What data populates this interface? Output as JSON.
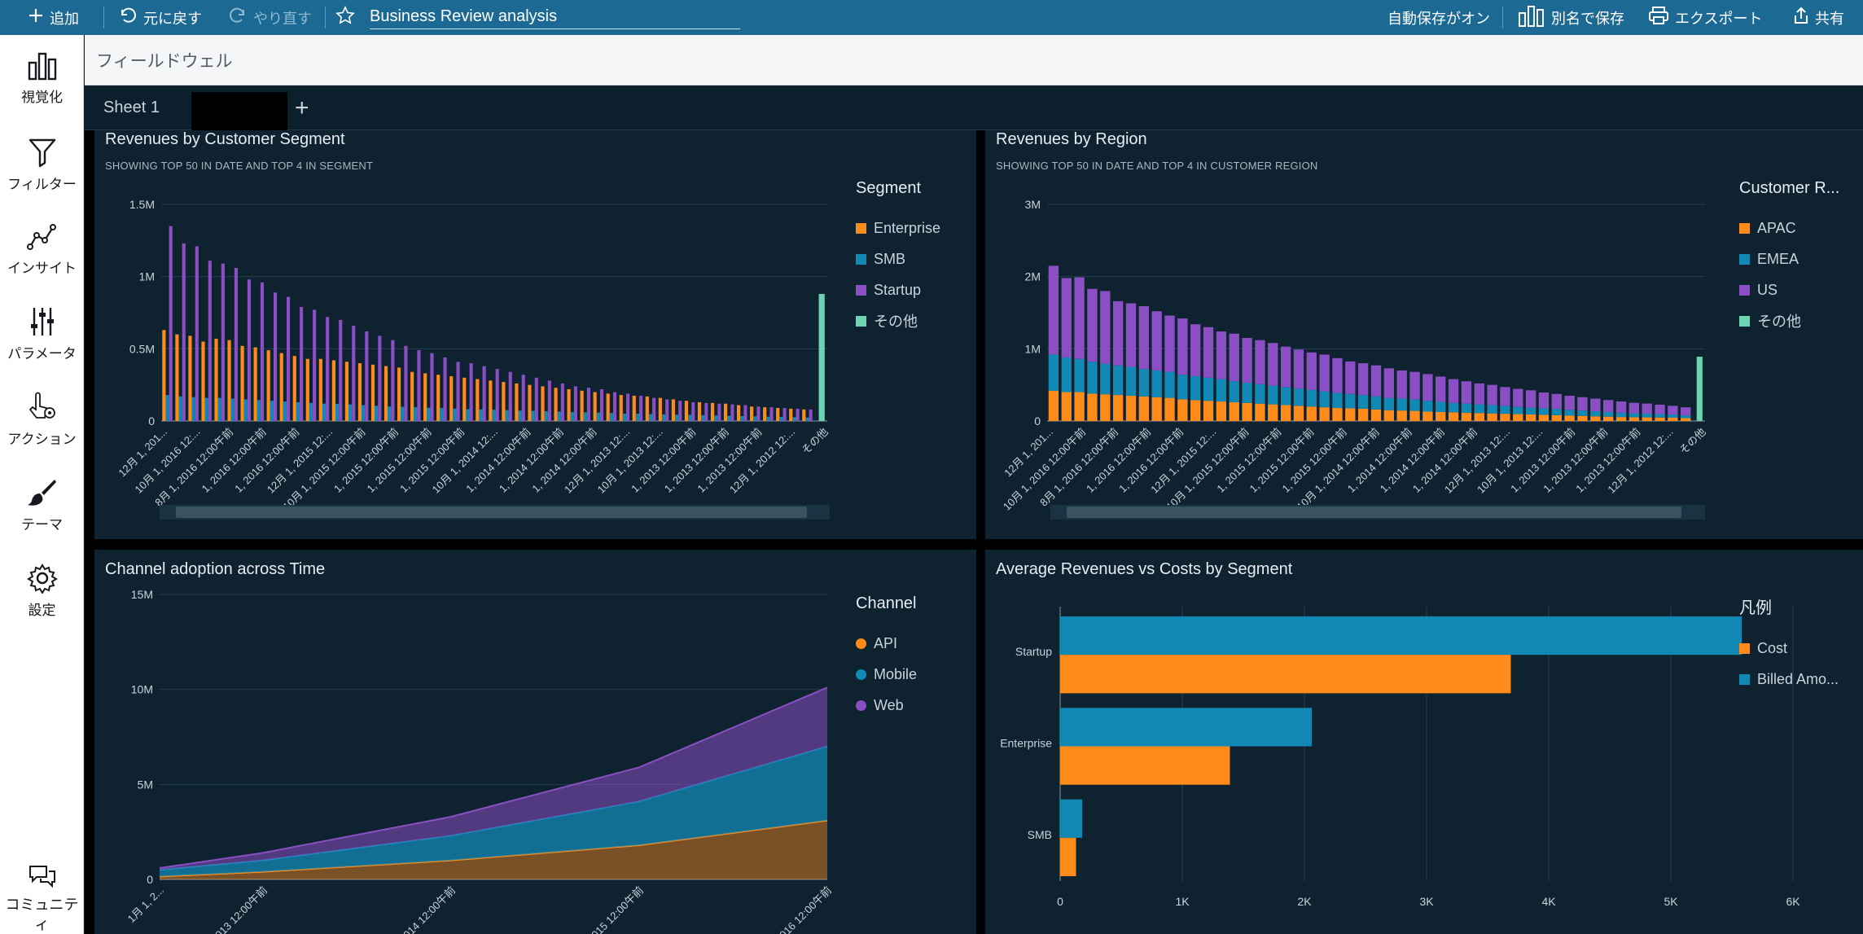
{
  "topbar": {
    "add_label": "追加",
    "undo_label": "元に戻す",
    "redo_label": "やり直す",
    "analysis_title": "Business Review analysis",
    "autosave_label": "自動保存がオン",
    "save_as_label": "別名で保存",
    "export_label": "エクスポート",
    "share_label": "共有"
  },
  "sidebar": {
    "items": [
      {
        "label": "視覚化",
        "icon": "bar-chart-icon"
      },
      {
        "label": "フィルター",
        "icon": "filter-icon"
      },
      {
        "label": "インサイト",
        "icon": "insight-icon"
      },
      {
        "label": "パラメータ",
        "icon": "sliders-icon"
      },
      {
        "label": "アクション",
        "icon": "pointer-gear-icon"
      },
      {
        "label": "テーマ",
        "icon": "brush-icon"
      },
      {
        "label": "設定",
        "icon": "gear-icon"
      }
    ],
    "community_label": "コミュニティ"
  },
  "fieldwell": {
    "label": "フィールドウェル"
  },
  "sheets": {
    "tabs": [
      "Sheet 1"
    ],
    "add_label": "+"
  },
  "colors": {
    "orange": "#ff8c1a",
    "teal": "#1189b4",
    "purple": "#8a4fc2",
    "mint": "#6fd2b2"
  },
  "visuals": {
    "segment": {
      "title": "Revenues by Customer Segment",
      "subtitle": "SHOWING TOP 50 IN DATE AND TOP 4 IN SEGMENT",
      "legend_title": "Segment",
      "legend": [
        "Enterprise",
        "SMB",
        "Startup",
        "その他"
      ]
    },
    "region": {
      "title": "Revenues by Region",
      "subtitle": "SHOWING TOP 50 IN DATE AND TOP 4 IN CUSTOMER REGION",
      "legend_title": "Customer R...",
      "legend": [
        "APAC",
        "EMEA",
        "US",
        "その他"
      ]
    },
    "channel": {
      "title": "Channel adoption across Time",
      "legend_title": "Channel",
      "legend": [
        "API",
        "Mobile",
        "Web"
      ]
    },
    "avg": {
      "title": "Average Revenues vs Costs by Segment",
      "legend_title": "凡例",
      "legend": [
        "Cost",
        "Billed Amo..."
      ]
    }
  },
  "chart_data": [
    {
      "id": "segment",
      "type": "bar",
      "y_ticks": [
        "0",
        "0.5M",
        "1M",
        "1.5M"
      ],
      "ylim": [
        0,
        1500000
      ],
      "x_tick_labels": [
        "12月 1, 201...",
        "10月 1, 2016 12:...",
        "8月 1, 2016 12:00午前",
        "1, 2016 12:00午前",
        "1, 2016 12:00午前",
        "12月 1, 2015 12:...",
        "10月 1, 2015 12:00午前",
        "1, 2015 12:00午前",
        "1, 2015 12:00午前",
        "1, 2015 12:00午前",
        "10月 1, 2014 12:...",
        "1, 2014 12:00午前",
        "1, 2014 12:00午前",
        "1, 2014 12:00午前",
        "12月 1, 2013 12:...",
        "10月 1, 2013 12:...",
        "1, 2013 12:00午前",
        "1, 2013 12:00午前",
        "1, 2013 12:00午前",
        "12月 1, 2012 12:...",
        "その他"
      ],
      "series": [
        {
          "name": "Enterprise",
          "values": [
            630000,
            600000,
            590000,
            550000,
            570000,
            560000,
            520000,
            510000,
            490000,
            470000,
            450000,
            430000,
            430000,
            420000,
            410000,
            400000,
            390000,
            380000,
            370000,
            340000,
            330000,
            320000,
            310000,
            300000,
            290000,
            280000,
            270000,
            260000,
            250000,
            240000,
            230000,
            220000,
            210000,
            200000,
            190000,
            180000,
            175000,
            170000,
            160000,
            150000,
            140000,
            130000,
            125000,
            120000,
            110000,
            100000,
            95000,
            90000,
            85000,
            80000
          ]
        },
        {
          "name": "SMB",
          "values": [
            180000,
            170000,
            165000,
            160000,
            160000,
            155000,
            150000,
            145000,
            140000,
            135000,
            130000,
            125000,
            120000,
            118000,
            115000,
            110000,
            105000,
            100000,
            98000,
            95000,
            92000,
            90000,
            85000,
            82000,
            80000,
            78000,
            75000,
            72000,
            70000,
            68000,
            65000,
            62000,
            60000,
            58000,
            55000,
            52000,
            50000,
            48000,
            46000,
            44000,
            42000,
            40000,
            38000,
            36000,
            34000,
            32000,
            30000,
            28000,
            26000,
            24000
          ]
        },
        {
          "name": "Startup",
          "values": [
            1350000,
            1230000,
            1210000,
            1110000,
            1090000,
            1060000,
            980000,
            960000,
            890000,
            860000,
            790000,
            770000,
            720000,
            700000,
            660000,
            620000,
            590000,
            560000,
            520000,
            490000,
            470000,
            440000,
            410000,
            400000,
            380000,
            360000,
            340000,
            320000,
            300000,
            280000,
            260000,
            240000,
            230000,
            220000,
            200000,
            190000,
            175000,
            160000,
            150000,
            140000,
            130000,
            125000,
            120000,
            115000,
            110000,
            100000,
            95000,
            90000,
            85000,
            80000
          ]
        },
        {
          "name": "その他",
          "values": [
            880000
          ]
        }
      ]
    },
    {
      "id": "region",
      "type": "bar",
      "stacked": true,
      "y_ticks": [
        "0",
        "1M",
        "2M",
        "3M"
      ],
      "ylim": [
        0,
        3000000
      ],
      "x_tick_labels": [
        "12月 1, 201...",
        "10月 1, 2016 12:00午前",
        "8月 1, 2016 12:00午前",
        "1, 2016 12:00午前",
        "1, 2016 12:00午前",
        "12月 1, 2015 12:...",
        "10月 1, 2015 12:00午前",
        "1, 2015 12:00午前",
        "1, 2015 12:00午前",
        "1, 2015 12:00午前",
        "10月 1, 2014 12:00午前",
        "1, 2014 12:00午前",
        "1, 2014 12:00午前",
        "1, 2014 12:00午前",
        "12月 1, 2013 12:...",
        "10月 1, 2013 12:...",
        "1, 2013 12:00午前",
        "1, 2013 12:00午前",
        "1, 2013 12:00午前",
        "12月 1, 2012 12:...",
        "その他"
      ],
      "series": [
        {
          "name": "APAC",
          "values": [
            420000,
            400000,
            400000,
            380000,
            370000,
            360000,
            350000,
            340000,
            330000,
            320000,
            300000,
            290000,
            280000,
            270000,
            260000,
            250000,
            240000,
            230000,
            220000,
            210000,
            200000,
            190000,
            180000,
            175000,
            170000,
            160000,
            150000,
            145000,
            140000,
            130000,
            125000,
            120000,
            115000,
            110000,
            105000,
            100000,
            95000,
            90000,
            85000,
            80000,
            75000,
            70000,
            65000,
            60000,
            55000,
            52000,
            50000,
            48000,
            45000,
            40000
          ]
        },
        {
          "name": "EMEA",
          "values": [
            500000,
            480000,
            460000,
            440000,
            420000,
            410000,
            400000,
            380000,
            370000,
            360000,
            340000,
            330000,
            320000,
            310000,
            290000,
            280000,
            270000,
            260000,
            250000,
            240000,
            230000,
            220000,
            210000,
            200000,
            190000,
            180000,
            170000,
            165000,
            160000,
            150000,
            140000,
            130000,
            125000,
            120000,
            115000,
            110000,
            100000,
            95000,
            90000,
            85000,
            80000,
            75000,
            70000,
            65000,
            60000,
            55000,
            52000,
            48000,
            45000,
            40000
          ]
        },
        {
          "name": "US",
          "values": [
            1230000,
            1100000,
            1130000,
            1010000,
            1010000,
            890000,
            880000,
            870000,
            820000,
            780000,
            780000,
            720000,
            700000,
            660000,
            660000,
            620000,
            610000,
            590000,
            560000,
            540000,
            520000,
            510000,
            480000,
            450000,
            440000,
            430000,
            410000,
            390000,
            380000,
            370000,
            350000,
            330000,
            310000,
            290000,
            280000,
            260000,
            250000,
            240000,
            220000,
            210000,
            195000,
            185000,
            175000,
            165000,
            155000,
            145000,
            140000,
            130000,
            120000,
            110000
          ]
        },
        {
          "name": "その他",
          "values": [
            890000
          ]
        }
      ]
    },
    {
      "id": "channel",
      "type": "area",
      "stacked": true,
      "y_ticks": [
        "0",
        "5M",
        "10M",
        "15M"
      ],
      "ylim": [
        0,
        15000000
      ],
      "x_tick_labels": [
        "1月 1, 2...",
        "1, 2013 12:00午前",
        "1, 2014 12:00午前",
        "1, 2015 12:00午前",
        "1, 2016 12:00午前"
      ],
      "x": [
        0,
        0.55,
        1.55,
        2.55,
        3.55
      ],
      "series": [
        {
          "name": "API",
          "values": [
            150000,
            400000,
            1000000,
            1800000,
            3100000
          ]
        },
        {
          "name": "Mobile",
          "values": [
            350000,
            600000,
            1300000,
            2300000,
            3900000
          ]
        },
        {
          "name": "Web",
          "values": [
            100000,
            400000,
            1000000,
            1800000,
            3100000
          ]
        }
      ]
    },
    {
      "id": "avg",
      "type": "bar",
      "orientation": "horizontal",
      "categories": [
        "Startup",
        "Enterprise",
        "SMB"
      ],
      "x_ticks": [
        "0",
        "1K",
        "2K",
        "3K",
        "4K",
        "5K",
        "6K"
      ],
      "xlim": [
        0,
        6000
      ],
      "series": [
        {
          "name": "Billed Amo...",
          "values": [
            5580,
            2060,
            180
          ]
        },
        {
          "name": "Cost",
          "values": [
            3690,
            1390,
            130
          ]
        }
      ]
    }
  ]
}
